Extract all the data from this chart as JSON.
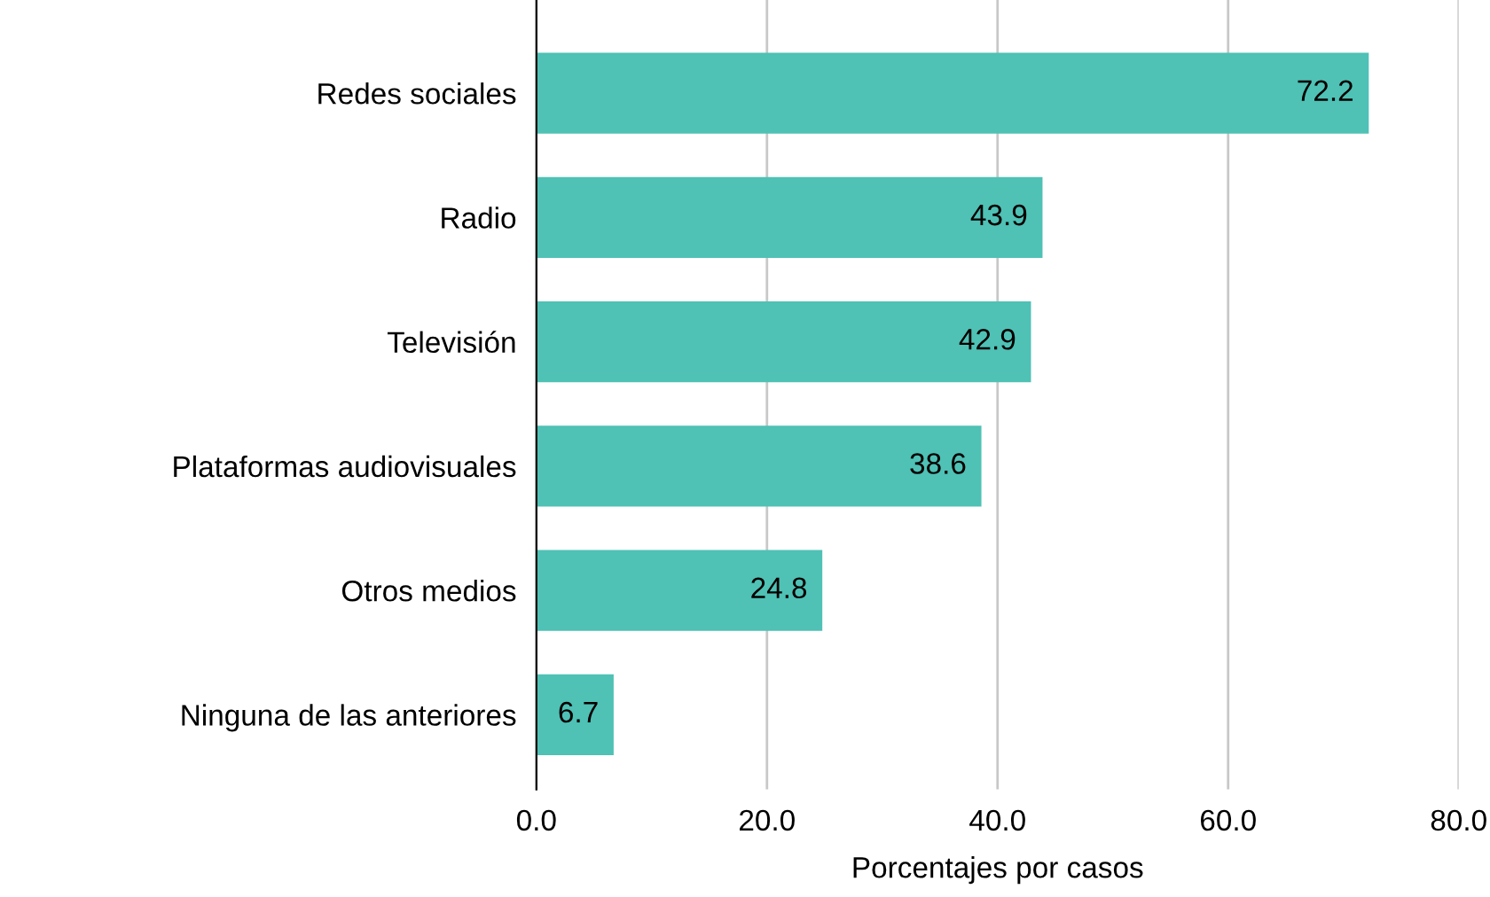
{
  "chart_data": {
    "type": "bar",
    "orientation": "horizontal",
    "xlabel": "Porcentajes por casos",
    "categories": [
      "Redes sociales",
      "Radio",
      "Televisión",
      "Plataformas audiovisuales",
      "Otros medios",
      "Ninguna de las anteriores"
    ],
    "values": [
      72.2,
      43.9,
      42.9,
      38.6,
      24.8,
      6.7
    ],
    "color": "#4fc1b5",
    "xlim": [
      0,
      80
    ],
    "xticks": [
      {
        "value": 0,
        "label": "0.0"
      },
      {
        "value": 20,
        "label": "20.0"
      },
      {
        "value": 40,
        "label": "40.0"
      },
      {
        "value": 60,
        "label": "60.0"
      },
      {
        "value": 80,
        "label": "80.0"
      }
    ],
    "grid": "x",
    "data_labels": true
  }
}
